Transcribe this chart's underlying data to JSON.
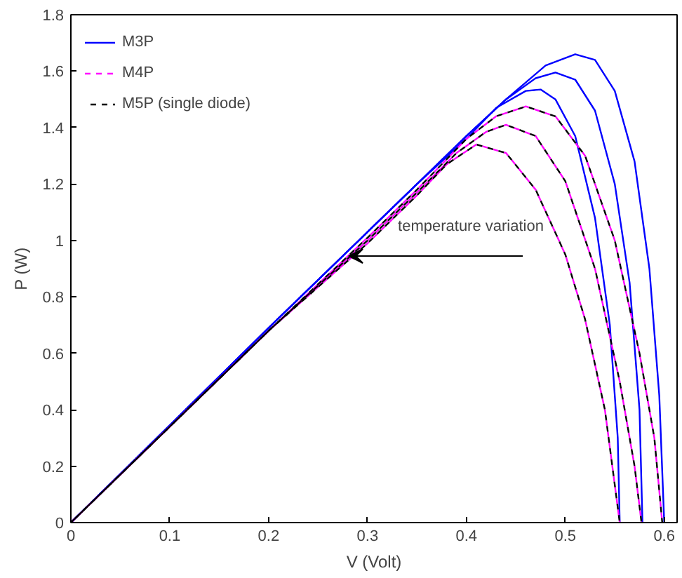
{
  "chart_data": {
    "type": "line",
    "xlabel": "V (Volt)",
    "ylabel": "P (W)",
    "xlim": [
      0,
      0.613
    ],
    "ylim": [
      0,
      1.8
    ],
    "xticks": [
      0,
      0.1,
      0.2,
      0.3,
      0.4,
      0.5,
      0.6
    ],
    "yticks": [
      0,
      0.2,
      0.4,
      0.6,
      0.8,
      1,
      1.2,
      1.4,
      1.6,
      1.8
    ],
    "legend": "top left",
    "annotations": [
      "temperature variation"
    ],
    "series": [
      {
        "name": "M3P",
        "color": "#0000ff",
        "line_style": "solid",
        "x": [
          0,
          0.1,
          0.2,
          0.3,
          0.35,
          0.4,
          0.44,
          0.48,
          0.51,
          0.53,
          0.55,
          0.57,
          0.585,
          0.595,
          0.6
        ],
        "values": [
          0,
          0.345,
          0.69,
          1.03,
          1.2,
          1.37,
          1.5,
          1.62,
          1.66,
          1.64,
          1.53,
          1.28,
          0.9,
          0.45,
          0
        ]
      },
      {
        "color": "#0000ff",
        "line_style": "solid",
        "x": [
          0,
          0.1,
          0.2,
          0.3,
          0.35,
          0.4,
          0.44,
          0.47,
          0.49,
          0.51,
          0.53,
          0.55,
          0.565,
          0.575,
          0.578
        ],
        "values": [
          0,
          0.345,
          0.69,
          1.03,
          1.2,
          1.37,
          1.5,
          1.575,
          1.595,
          1.57,
          1.46,
          1.2,
          0.85,
          0.4,
          0
        ]
      },
      {
        "color": "#0000ff",
        "line_style": "solid",
        "x": [
          0,
          0.1,
          0.2,
          0.3,
          0.35,
          0.4,
          0.43,
          0.46,
          0.475,
          0.49,
          0.51,
          0.53,
          0.545,
          0.553,
          0.555
        ],
        "values": [
          0,
          0.345,
          0.69,
          1.03,
          1.2,
          1.36,
          1.47,
          1.53,
          1.535,
          1.5,
          1.37,
          1.08,
          0.7,
          0.3,
          0
        ]
      },
      {
        "name": "M4P",
        "color": "#ff00ff",
        "line_style": "dashed",
        "x": [
          0,
          0.1,
          0.2,
          0.3,
          0.35,
          0.4,
          0.43,
          0.46,
          0.49,
          0.52,
          0.55,
          0.575,
          0.59,
          0.598
        ],
        "values": [
          0,
          0.34,
          0.68,
          1.01,
          1.18,
          1.36,
          1.44,
          1.475,
          1.44,
          1.3,
          1.0,
          0.6,
          0.3,
          0
        ]
      },
      {
        "color": "#ff00ff",
        "line_style": "dashed",
        "x": [
          0,
          0.1,
          0.2,
          0.3,
          0.35,
          0.39,
          0.42,
          0.44,
          0.47,
          0.5,
          0.53,
          0.555,
          0.57,
          0.577
        ],
        "values": [
          0,
          0.34,
          0.68,
          1.0,
          1.17,
          1.31,
          1.385,
          1.41,
          1.37,
          1.21,
          0.9,
          0.5,
          0.2,
          0
        ]
      },
      {
        "color": "#ff00ff",
        "line_style": "dashed",
        "x": [
          0,
          0.1,
          0.2,
          0.3,
          0.35,
          0.38,
          0.41,
          0.44,
          0.47,
          0.5,
          0.52,
          0.54,
          0.555
        ],
        "values": [
          0,
          0.34,
          0.68,
          0.99,
          1.16,
          1.27,
          1.34,
          1.31,
          1.18,
          0.95,
          0.72,
          0.4,
          0
        ]
      },
      {
        "name": "M5P (single diode)",
        "color": "#000000",
        "line_style": "dashed",
        "x": [
          0,
          0.1,
          0.2,
          0.3,
          0.35,
          0.4,
          0.43,
          0.46,
          0.49,
          0.52,
          0.55,
          0.575,
          0.59,
          0.598
        ],
        "values": [
          0,
          0.34,
          0.68,
          1.01,
          1.18,
          1.36,
          1.44,
          1.475,
          1.44,
          1.3,
          1.0,
          0.6,
          0.3,
          0
        ]
      },
      {
        "color": "#000000",
        "line_style": "dashed",
        "x": [
          0,
          0.1,
          0.2,
          0.3,
          0.35,
          0.39,
          0.42,
          0.44,
          0.47,
          0.5,
          0.53,
          0.555,
          0.57,
          0.577
        ],
        "values": [
          0,
          0.34,
          0.68,
          1.0,
          1.17,
          1.31,
          1.385,
          1.41,
          1.37,
          1.21,
          0.9,
          0.5,
          0.2,
          0
        ]
      },
      {
        "color": "#000000",
        "line_style": "dashed",
        "x": [
          0,
          0.1,
          0.2,
          0.3,
          0.35,
          0.38,
          0.41,
          0.44,
          0.47,
          0.5,
          0.52,
          0.54,
          0.555
        ],
        "values": [
          0,
          0.34,
          0.68,
          0.99,
          1.16,
          1.27,
          1.34,
          1.31,
          1.18,
          0.95,
          0.72,
          0.4,
          0
        ]
      }
    ]
  }
}
